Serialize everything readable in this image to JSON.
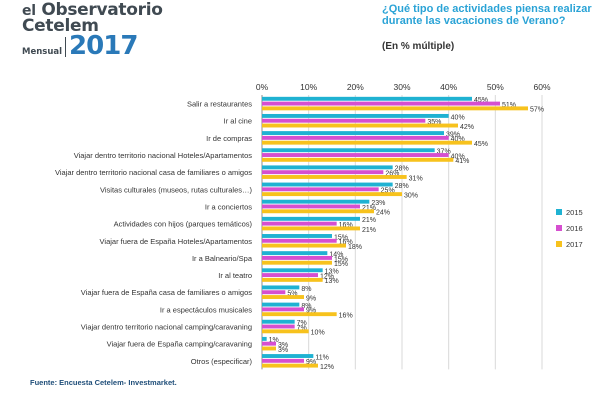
{
  "brand": {
    "line1_prefix": "el",
    "line1_word": "Observatorio",
    "line2": "Cetelem",
    "subtitle": "Mensual",
    "year": "2017"
  },
  "question": {
    "text": "¿Qué tipo de actividades piensa realizar durante las vacaciones de Verano?",
    "sub": "(En % múltiple)"
  },
  "source": "Fuente: Encuesta Cetelem- Investmarket.",
  "colors": {
    "s2015": "#1fb2d2",
    "s2016": "#d64fd0",
    "s2017": "#f7c21d",
    "grid": "#d9d9d9",
    "axis": "#8c8c8c",
    "text": "#333333"
  },
  "chart_data": {
    "type": "bar",
    "orientation": "horizontal",
    "categories": [
      "Salir a restaurantes",
      "Ir al cine",
      "Ir de compras",
      "Viajar dentro territorio nacional Hoteles/Apartamentos",
      "Viajar dentro territorio nacional casa de familiares o amigos",
      "Visitas culturales (museos, rutas culturales…)",
      "Ir a conciertos",
      "Actividades con hijos (parques temáticos)",
      "Viajar fuera de España Hoteles/Apartamentos",
      "Ir a Balneario/Spa",
      "Ir al teatro",
      "Viajar fuera de España casa de familiares o amigos",
      "Ir a espectáculos musicales",
      "Viajar dentro territorio nacional camping/caravaning",
      "Viajar fuera de España camping/caravaning",
      "Otros (especificar)"
    ],
    "series": [
      {
        "name": "2015",
        "values": [
          45,
          40,
          39,
          37,
          28,
          28,
          23,
          21,
          15,
          14,
          13,
          8,
          8,
          7,
          1,
          11
        ]
      },
      {
        "name": "2016",
        "values": [
          51,
          35,
          40,
          40,
          26,
          25,
          21,
          16,
          16,
          15,
          12,
          5,
          9,
          7,
          3,
          9
        ]
      },
      {
        "name": "2017",
        "values": [
          57,
          42,
          45,
          41,
          31,
          30,
          24,
          21,
          18,
          15,
          13,
          9,
          16,
          10,
          3,
          12
        ]
      }
    ],
    "data_labels": [
      [
        "45%",
        "40%",
        "39%",
        "37%",
        "28%",
        "28%",
        "23%",
        "21%",
        "15%",
        "14%",
        "13%",
        "8%",
        "8%",
        "7%",
        "1%",
        "11%"
      ],
      [
        "51%",
        "35%",
        "40%",
        "40%",
        "26%",
        "25%",
        "21%",
        "16%",
        "16%",
        "15%",
        "12%",
        "5%",
        "9%",
        "7%",
        "3%",
        "9%"
      ],
      [
        "57%",
        "42%",
        "45%",
        "41%",
        "31%",
        "30%",
        "24%",
        "21%",
        "18%",
        "15%",
        "13%",
        "9%",
        "16%",
        "10%",
        "3%",
        "12%"
      ]
    ],
    "xlim": [
      0,
      60
    ],
    "x_ticks": [
      0,
      10,
      20,
      30,
      40,
      50,
      60
    ],
    "x_tick_labels": [
      "0%",
      "10%",
      "20%",
      "30%",
      "40%",
      "50%",
      "60%"
    ],
    "grid": true,
    "legend_position": "right"
  }
}
